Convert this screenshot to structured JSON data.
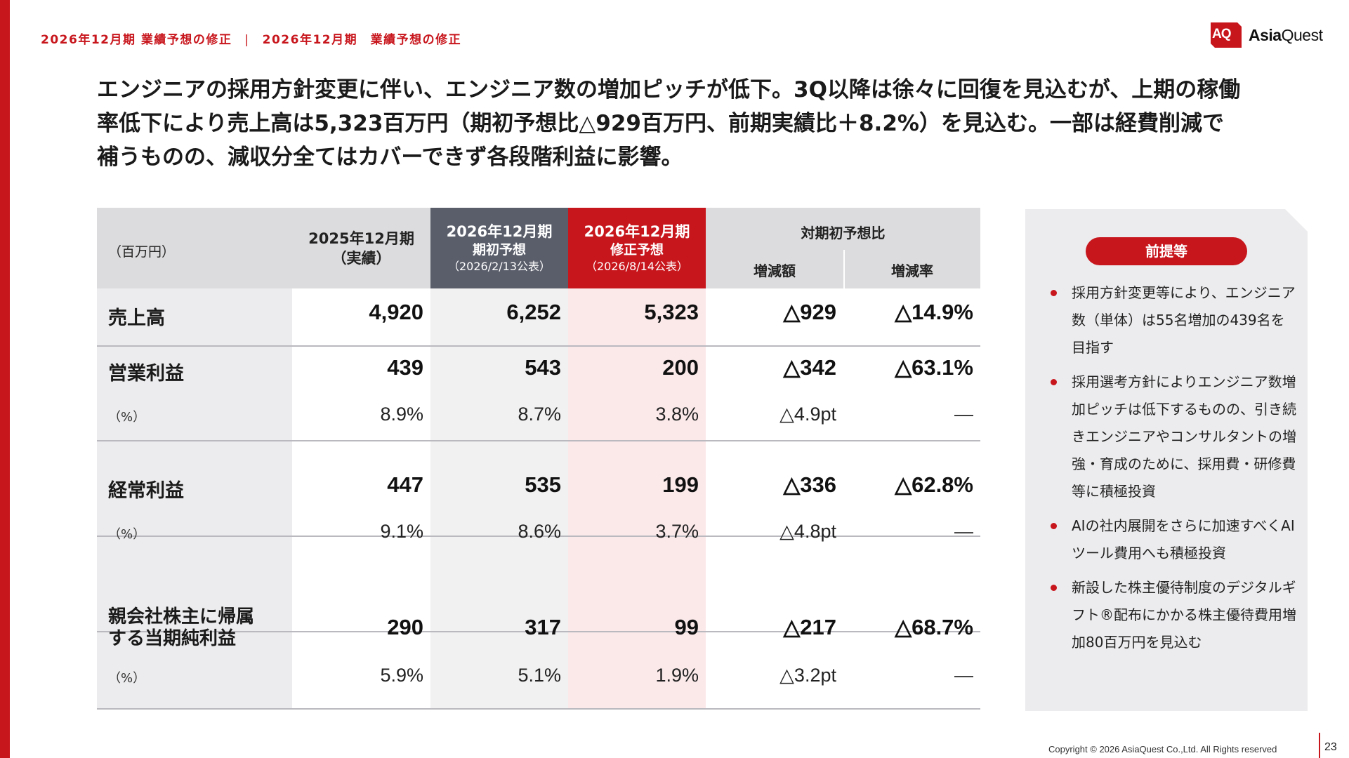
{
  "header": {
    "breadcrumb_left": "2026年12月期 業績予想の修正",
    "breadcrumb_sep": "|",
    "breadcrumb_right": "2026年12月期　業績予想の修正",
    "logo_mark": "AQ",
    "logo_text_bold": "Asia",
    "logo_text_light": "Quest",
    "accent_color": "#c8161d"
  },
  "headline": {
    "line1": "エンジニアの採用方針変更に伴い、エンジニア数の増加ピッチが低下。3Q以降は徐々に回復を見込むが、上期の稼働",
    "line2": "率低下により売上高は5,323百万円（期初予想比△929百万円、前期実績比＋8.2%）を見込む。一部は経費削減で",
    "line3": "補うものの、減収分全てはカバーできず各段階利益に影響。"
  },
  "table": {
    "unit": "（百万円）",
    "col_2025_l1": "2025年12月期",
    "col_2025_l2": "（実績）",
    "col_plan_l1": "2026年12月期",
    "col_plan_l2": "期初予想",
    "col_plan_l3": "（2026/2/13公表）",
    "col_rev_l1": "2026年12月期",
    "col_rev_l2": "修正予想",
    "col_rev_l3": "（2026/8/14公表）",
    "col_cmp_title": "対期初予想比",
    "col_cmp_diff": "増減額",
    "col_cmp_rate": "増減率",
    "rows": [
      {
        "label": "売上高",
        "v2025": "4,920",
        "plan": "6,252",
        "rev": "5,323",
        "diff": "△929",
        "rate": "△14.9%"
      },
      {
        "label": "営業利益",
        "v2025": "439",
        "plan": "543",
        "rev": "200",
        "diff": "△342",
        "rate": "△63.1%",
        "sub_label": "（%）",
        "s2025": "8.9%",
        "splan": "8.7%",
        "srev": "3.8%",
        "sdiff": "△4.9pt",
        "srate": "―"
      },
      {
        "label": "経常利益",
        "v2025": "447",
        "plan": "535",
        "rev": "199",
        "diff": "△336",
        "rate": "△62.8%",
        "sub_label": "（%）",
        "s2025": "9.1%",
        "splan": "8.6%",
        "srev": "3.7%",
        "sdiff": "△4.8pt",
        "srate": "―"
      },
      {
        "label_l1": "親会社株主に帰属",
        "label_l2": "する当期純利益",
        "v2025": "290",
        "plan": "317",
        "rev": "99",
        "diff": "△217",
        "rate": "△68.7%",
        "sub_label": "（%）",
        "s2025": "5.9%",
        "splan": "5.1%",
        "srev": "1.9%",
        "sdiff": "△3.2pt",
        "srate": "―"
      }
    ]
  },
  "sidebar": {
    "title": "前提等",
    "items": [
      "採用方針変更等により、エンジニア数（単体）は55名増加の439名を目指す",
      "採用選考方針によりエンジニア数増加ピッチは低下するものの、引き続きエンジニアやコンサルタントの増強・育成のために、採用費・研修費等に積極投資",
      "AIの社内展開をさらに加速すべくAIツール費用へも積極投資",
      "新設した株主優待制度のデジタルギフト®配布にかかる株主優待費用増加80百万円を見込む"
    ]
  },
  "footer": {
    "copyright": "Copyright © 2026 AsiaQuest Co.,Ltd. All Rights reserved",
    "page": "23"
  }
}
